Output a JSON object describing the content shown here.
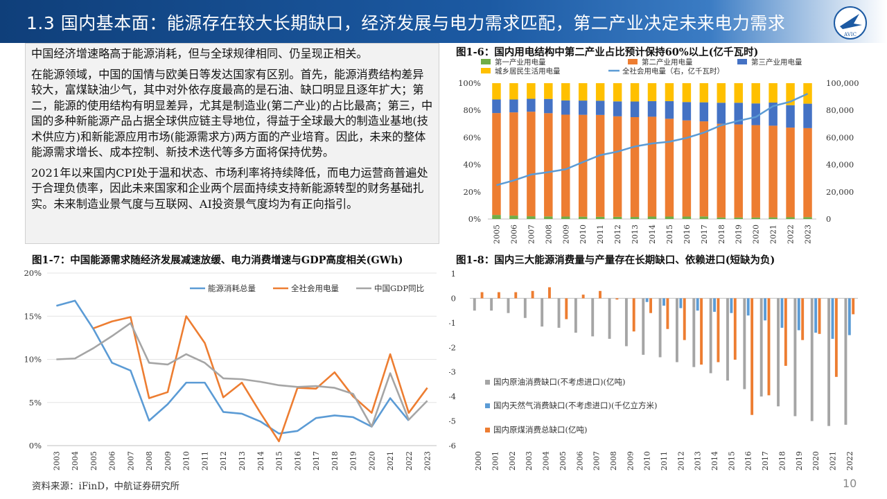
{
  "header": {
    "title": "1.3 国内基本面：能源存在较大长期缺口，经济发展与电力需求匹配，第二产业决定未来电力需求",
    "logo_text": "AVIC"
  },
  "text": {
    "p1": "中国经济增速略高于能源消耗，但与全球规律相同、仍呈现正相关。",
    "p2": "在能源领域，中国的国情与欧美日等发达国家有区别。首先，能源消费结构差异较大，富煤缺油少气，其中对外依存度最高的是石油、缺口明显且逐年扩大；第二，能源的使用结构有明显差异，尤其是制造业(第二产业)的占比最高；第三，中国的多种新能源产品占据全球供应链主导地位，得益于全球最大的制造业基地(技术供应方)和新能源应用市场(能源需求方)两方面的产业培育。因此，未来的整体能源需求增长、成本控制、新技术迭代等多方面将保持优势。",
    "p3": "2021年以来国内CPI处于温和状态、市场利率将持续降低，而电力运营商普遍处于合理负债率，因此未来国家和企业两个层面持续支持新能源转型的财务基础扎实。未来制造业景气度与互联网、AI投资景气度均为有正向指引。"
  },
  "colors": {
    "primary": "#1c5aa3",
    "gray": "#a5a5a5",
    "orange": "#ed7d31",
    "blue": "#5b9bd5",
    "green": "#70ad47",
    "gold": "#ffc000",
    "darkblue": "#4472c4"
  },
  "chart_data": [
    {
      "id": "fig16",
      "type": "bar",
      "title": "图1-6：国内用电结构中第二产业占比预计保持60%以上(亿千瓦时)",
      "categories": [
        "2005",
        "2006",
        "2007",
        "2008",
        "2009",
        "2010",
        "2011",
        "2012",
        "2013",
        "2014",
        "2015",
        "2016",
        "2017",
        "2018",
        "2019",
        "2020",
        "2021",
        "2022",
        "2023"
      ],
      "series": [
        {
          "name": "第一产业用电量",
          "color": "#70ad47",
          "values": [
            3,
            2.5,
            2,
            1.9,
            1.8,
            1.7,
            1.6,
            1.6,
            1.5,
            1.8,
            1.8,
            1.8,
            1.9,
            1.1,
            1.1,
            1.1,
            1.2,
            1.3,
            1.4
          ]
        },
        {
          "name": "第二产业用电量",
          "color": "#ed7d31",
          "values": [
            75,
            76,
            77,
            76,
            75,
            75,
            75,
            74,
            73.5,
            73.5,
            72,
            70.8,
            70,
            69,
            68.5,
            68,
            67.5,
            66,
            65.5
          ]
        },
        {
          "name": "第三产业用电量",
          "color": "#4472c4",
          "values": [
            10,
            9.5,
            9.5,
            10.5,
            10.5,
            10.5,
            10.5,
            11,
            11.5,
            11.5,
            13,
            13.5,
            14,
            15.5,
            16,
            16,
            17,
            16.5,
            18
          ]
        },
        {
          "name": "城乡居民生活用电量",
          "color": "#ffc000",
          "values": [
            12,
            12,
            11.5,
            11.6,
            12.7,
            12.8,
            12.9,
            13.4,
            13.5,
            13.2,
            13.2,
            13.9,
            14.1,
            14.4,
            14.4,
            14.9,
            14.3,
            16.2,
            15.1
          ]
        }
      ],
      "line": {
        "name": "全社会用电量（右，亿千瓦时）",
        "color": "#5b9bd5",
        "values": [
          24900,
          28400,
          32700,
          34500,
          36600,
          41900,
          47000,
          49600,
          53400,
          55600,
          56900,
          59700,
          63600,
          69000,
          72300,
          75100,
          83100,
          86400,
          92200
        ]
      },
      "ylim": [
        0,
        100
      ],
      "y2lim": [
        0,
        100000
      ],
      "yticks": [
        "0%",
        "20%",
        "40%",
        "60%",
        "80%",
        "100%"
      ],
      "y2ticks": [
        "0",
        "20,000",
        "40,000",
        "60,000",
        "80,000",
        "100,000"
      ]
    },
    {
      "id": "fig17",
      "type": "line",
      "title": "图1-7：中国能源需求随经济发展减速放缓、电力消费增速与GDP高度相关(GWh)",
      "categories": [
        "2003",
        "2004",
        "2005",
        "2006",
        "2007",
        "2008",
        "2009",
        "2010",
        "2011",
        "2012",
        "2013",
        "2014",
        "2015",
        "2016",
        "2017",
        "2018",
        "2019",
        "2020",
        "2021",
        "2022",
        "2023"
      ],
      "series": [
        {
          "name": "能源消耗总量",
          "color": "#5b9bd5",
          "values": [
            16.2,
            16.8,
            13.5,
            9.6,
            8.7,
            2.9,
            4.8,
            7.3,
            7.3,
            3.9,
            3.7,
            2.8,
            1.4,
            1.7,
            3.2,
            3.5,
            3.3,
            2.2,
            5.5,
            2.9,
            null
          ]
        },
        {
          "name": "全社会用电量",
          "color": "#ed7d31",
          "values": [
            null,
            null,
            13.6,
            14.4,
            14.9,
            5.5,
            6.2,
            15.0,
            11.9,
            5.6,
            7.3,
            3.8,
            0.5,
            6.7,
            6.6,
            8.5,
            5.7,
            3.8,
            10.6,
            3.8,
            6.7
          ]
        },
        {
          "name": "中国GDP同比",
          "color": "#a5a5a5",
          "values": [
            10.0,
            10.1,
            11.3,
            12.7,
            14.2,
            9.6,
            9.4,
            10.6,
            9.6,
            7.8,
            7.7,
            7.4,
            7.0,
            6.8,
            6.9,
            6.7,
            6.0,
            2.2,
            8.4,
            3.0,
            5.2
          ]
        }
      ],
      "ylim": [
        0,
        20
      ],
      "yticks": [
        "0%",
        "5%",
        "10%",
        "15%",
        "20%"
      ]
    },
    {
      "id": "fig18",
      "type": "bar",
      "title": "图1-8：国内三大能源消费量与产量存在长期缺口、依赖进口(短缺为负)",
      "categories": [
        "2000",
        "2001",
        "2002",
        "2003",
        "2004",
        "2005",
        "2006",
        "2007",
        "2008",
        "2009",
        "2010",
        "2011",
        "2012",
        "2013",
        "2014",
        "2015",
        "2016",
        "2017",
        "2018",
        "2019",
        "2020",
        "2021",
        "2022"
      ],
      "series": [
        {
          "name": "国内原油消费缺口(不考虑进口)(亿吨)",
          "color": "#a5a5a5",
          "values": [
            -0.5,
            -0.5,
            -0.6,
            -0.8,
            -1.15,
            -1.2,
            -1.4,
            -1.55,
            -1.65,
            -1.95,
            -2.3,
            -2.4,
            -2.6,
            -2.8,
            -3.05,
            -3.35,
            -3.7,
            -4.0,
            -4.4,
            -4.8,
            -5.0,
            -5.2,
            -5.15
          ]
        },
        {
          "name": "国内天然气消费缺口(不考虑进口)(千亿立方米)",
          "color": "#5b9bd5",
          "values": [
            0,
            0,
            0,
            0,
            0,
            0,
            0,
            0,
            0,
            0,
            -0.15,
            -0.3,
            -0.4,
            -0.5,
            -0.55,
            -0.6,
            -0.7,
            -0.9,
            -1.2,
            -1.3,
            -1.4,
            -1.65,
            -1.5
          ]
        },
        {
          "name": "国内原煤消费总缺口(亿吨)",
          "color": "#ed7d31",
          "values": [
            0.25,
            0.25,
            0.25,
            0.3,
            0.45,
            -0.85,
            0.15,
            0.3,
            -0.05,
            -1.35,
            -0.6,
            -1.25,
            -1.7,
            -2.7,
            -2.6,
            -2.5,
            -4.75,
            -3.95,
            -2.75,
            -1.7,
            -1.45,
            -3.2,
            -0.65
          ]
        }
      ],
      "ylim": [
        -6,
        1
      ],
      "yticks": [
        "-6",
        "-5",
        "-4",
        "-3",
        "-2",
        "-1",
        "0",
        "1"
      ]
    }
  ],
  "footer": {
    "source": "资料来源：iFinD，中航证券研究所",
    "page": "10"
  }
}
